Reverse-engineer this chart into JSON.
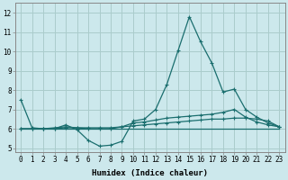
{
  "xlabel": "Humidex (Indice chaleur)",
  "background_color": "#cce8ec",
  "grid_color": "#aacccc",
  "line_color": "#1a6e6e",
  "xlim": [
    -0.5,
    23.5
  ],
  "ylim": [
    4.8,
    12.5
  ],
  "yticks": [
    5,
    6,
    7,
    8,
    9,
    10,
    11,
    12
  ],
  "xticks": [
    0,
    1,
    2,
    3,
    4,
    5,
    6,
    7,
    8,
    9,
    10,
    11,
    12,
    13,
    14,
    15,
    16,
    17,
    18,
    19,
    20,
    21,
    22,
    23
  ],
  "xlabel_fontsize": 6.5,
  "tick_fontsize": 5.5,
  "series1_x": [
    0,
    1,
    2,
    3,
    4,
    5,
    6,
    7,
    8,
    9,
    10,
    11,
    12,
    13,
    14,
    15,
    16,
    17,
    18,
    19,
    20,
    21,
    22,
    23
  ],
  "series1_y": [
    7.5,
    6.05,
    6.0,
    6.0,
    6.2,
    5.95,
    5.4,
    5.1,
    5.15,
    5.35,
    6.4,
    6.5,
    7.0,
    8.3,
    10.05,
    11.8,
    10.5,
    9.4,
    7.9,
    8.05,
    7.0,
    6.6,
    6.3,
    6.1
  ],
  "series2_x": [
    0,
    1,
    2,
    3,
    4,
    5,
    6,
    7,
    8,
    9,
    10,
    11,
    12,
    13,
    14,
    15,
    16,
    17,
    18,
    19,
    20,
    21,
    22,
    23
  ],
  "series2_y": [
    6.0,
    6.0,
    6.0,
    6.0,
    6.0,
    6.0,
    6.0,
    6.0,
    6.0,
    6.0,
    6.0,
    6.0,
    6.0,
    6.0,
    6.0,
    6.0,
    6.0,
    6.0,
    6.0,
    6.0,
    6.0,
    6.0,
    6.0,
    6.0
  ],
  "series3_x": [
    0,
    1,
    2,
    3,
    4,
    5,
    6,
    7,
    8,
    9,
    10,
    11,
    12,
    13,
    14,
    15,
    16,
    17,
    18,
    19,
    20,
    21,
    22,
    23
  ],
  "series3_y": [
    6.0,
    6.0,
    6.0,
    6.05,
    6.1,
    6.05,
    6.0,
    6.0,
    6.0,
    6.1,
    6.3,
    6.35,
    6.45,
    6.55,
    6.6,
    6.65,
    6.7,
    6.75,
    6.85,
    7.0,
    6.6,
    6.35,
    6.2,
    6.1
  ],
  "series4_x": [
    0,
    1,
    2,
    3,
    4,
    5,
    6,
    7,
    8,
    9,
    10,
    11,
    12,
    13,
    14,
    15,
    16,
    17,
    18,
    19,
    20,
    21,
    22,
    23
  ],
  "series4_y": [
    6.0,
    6.0,
    6.0,
    6.0,
    6.05,
    6.05,
    6.05,
    6.05,
    6.05,
    6.1,
    6.15,
    6.2,
    6.25,
    6.3,
    6.35,
    6.4,
    6.45,
    6.5,
    6.5,
    6.55,
    6.55,
    6.5,
    6.4,
    6.1
  ]
}
